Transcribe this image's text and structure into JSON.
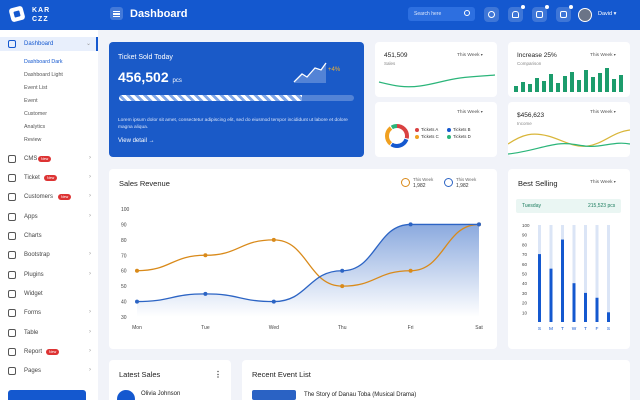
{
  "brand": {
    "line1": "KAR",
    "line2": "CZZ"
  },
  "header": {
    "title": "Dashboard",
    "search_placeholder": "Search here",
    "user_name": "David"
  },
  "sidebar": {
    "dashboard": "Dashboard",
    "submenu": [
      "Dashboard Dark",
      "Dashboard Light",
      "Event List",
      "Event",
      "Customer",
      "Analytics",
      "Review"
    ],
    "items": [
      {
        "label": "CMS",
        "badge": "New"
      },
      {
        "label": "Ticket",
        "badge": "New"
      },
      {
        "label": "Customers",
        "badge": "New"
      },
      {
        "label": "Apps",
        "badge": ""
      },
      {
        "label": "Charts",
        "badge": ""
      },
      {
        "label": "Bootstrap",
        "badge": ""
      },
      {
        "label": "Plugins",
        "badge": ""
      },
      {
        "label": "Widget",
        "badge": ""
      },
      {
        "label": "Forms",
        "badge": ""
      },
      {
        "label": "Table",
        "badge": ""
      },
      {
        "label": "Report",
        "badge": "New"
      },
      {
        "label": "Pages",
        "badge": ""
      }
    ]
  },
  "ticket_card": {
    "title": "Ticket Sold Today",
    "value": "456,502",
    "unit": "pcs",
    "trend": "+4%",
    "progress": 0.78,
    "description": "Lorem ipsum dolor sit amet, consectetur adipiscing elit, sed do eiusmod tempor incididunt ut labore et dolore magna aliqua.",
    "link": "View detail"
  },
  "stats": {
    "sales": {
      "value": "451,509",
      "label": "Sales",
      "period": "This Week"
    },
    "increase": {
      "value": "Increase 25%",
      "label": "Comparison",
      "period": "This Week"
    },
    "tickets": {
      "period": "This Week",
      "legend": [
        "Tickets A",
        "Tickets B",
        "Tickets C",
        "Tickets D"
      ],
      "colors": [
        "#d94141",
        "#1458cf",
        "#f0a020",
        "#2bb57a"
      ]
    },
    "income": {
      "value": "$456,623",
      "label": "Income",
      "period": "This Week"
    }
  },
  "sales_revenue": {
    "title": "Sales Revenue",
    "legend": [
      {
        "label": "This Week",
        "value": "1,982",
        "color": "#d98a1a"
      },
      {
        "label": "This Week",
        "value": "1,982",
        "color": "#2c64c4"
      }
    ]
  },
  "best_selling": {
    "title": "Best Selling",
    "period": "This Week",
    "day": "Tuesday",
    "day_value": "215,523 pcs"
  },
  "latest_sales": {
    "title": "Latest Sales",
    "first_name": "Olivia Johnson"
  },
  "recent_events": {
    "title": "Recent Event List",
    "first_title": "The Story of Danau Toba (Musical Drama)"
  },
  "chart_data": [
    {
      "type": "line",
      "title": "Sales Revenue",
      "categories": [
        "Mon",
        "Tue",
        "Wed",
        "Thu",
        "Fri",
        "Sat"
      ],
      "y_ticks": [
        100,
        90,
        80,
        70,
        60,
        50,
        40,
        30
      ],
      "ylim": [
        30,
        100
      ],
      "series": [
        {
          "values": [
            60,
            70,
            80,
            50,
            60,
            90
          ]
        },
        {
          "values": [
            40,
            45,
            40,
            60,
            90,
            90
          ]
        }
      ]
    },
    {
      "type": "bar",
      "title": "Best Selling",
      "categories": [
        "S",
        "M",
        "T",
        "W",
        "T",
        "F",
        "S"
      ],
      "y_ticks": [
        100,
        90,
        80,
        70,
        60,
        50,
        40,
        30,
        20,
        10
      ],
      "ylim": [
        0,
        100
      ],
      "values": [
        70,
        55,
        85,
        40,
        30,
        25,
        10
      ]
    }
  ]
}
